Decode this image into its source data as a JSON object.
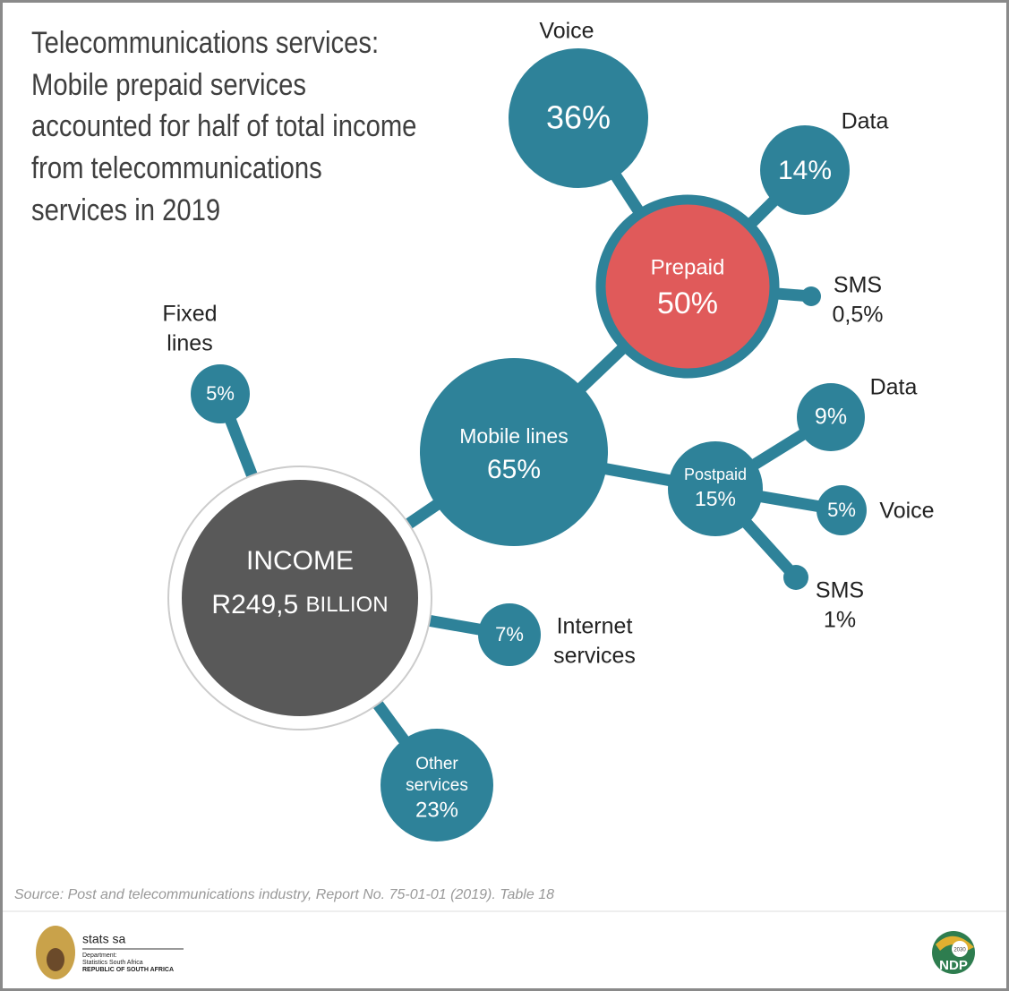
{
  "header": {
    "title_lines": [
      "Telecommunications services:",
      "Mobile prepaid services",
      "accounted for half of total income",
      "from telecommunications",
      "services in 2019"
    ]
  },
  "income": {
    "label": "INCOME",
    "amount": "R249,5",
    "unit": "BILLION"
  },
  "nodes": {
    "mobile": {
      "name": "Mobile lines",
      "value": "65%"
    },
    "prepaid": {
      "name": "Prepaid",
      "value": "50%"
    },
    "prepaid_voice": {
      "name": "Voice",
      "value": "36%"
    },
    "prepaid_data": {
      "name": "Data",
      "value": "14%"
    },
    "prepaid_sms": {
      "name": "SMS",
      "value": "0,5%"
    },
    "postpaid": {
      "name": "Postpaid",
      "value": "15%"
    },
    "postpaid_data": {
      "name": "Data",
      "value": "9%"
    },
    "postpaid_voice": {
      "name": "Voice",
      "value": "5%"
    },
    "postpaid_sms": {
      "name": "SMS",
      "value": "1%"
    },
    "fixed": {
      "name_lines": [
        "Fixed",
        "lines"
      ],
      "value": "5%"
    },
    "internet": {
      "name_lines": [
        "Internet",
        "services"
      ],
      "value": "7%"
    },
    "other": {
      "name_lines": [
        "Other",
        "services"
      ],
      "value": "23%"
    }
  },
  "footer": {
    "source": "Source: Post and telecommunications industry, Report No. 75-01-01 (2019). Table 18",
    "logo_left": {
      "name": "stats sa",
      "line1": "Department:",
      "line2": "Statistics South Africa",
      "line3": "REPUBLIC OF SOUTH AFRICA"
    },
    "logo_right": {
      "year": "2030",
      "name": "NDP"
    }
  }
}
